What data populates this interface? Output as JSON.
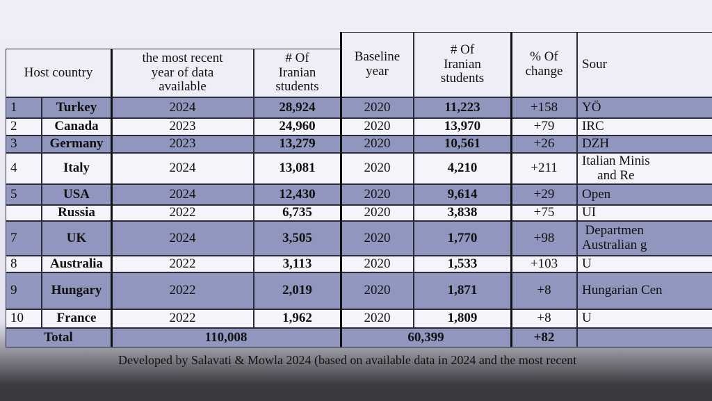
{
  "table": {
    "header": [
      "Host country",
      "the most recent\nyear of data\navailable",
      "# Of\nIranian\nstudents",
      "Baseline\nyear",
      "# Of\nIranian\nstudents",
      "% Of\nchange",
      "Sour"
    ],
    "rows": [
      [
        "1",
        "Turkey",
        "2024",
        "28,924",
        "2020",
        "11,223",
        "+158",
        "YÖ"
      ],
      [
        "2",
        "Canada",
        "2023",
        "24,960",
        "2020",
        "13,970",
        "+79",
        "IRC"
      ],
      [
        "3",
        "Germany",
        "2023",
        "13,279",
        "2020",
        "10,561",
        "+26",
        "DZH"
      ],
      [
        "4",
        "Italy",
        "2024",
        "13,081",
        "2020",
        "4,210",
        "+211",
        "Italian Minis\nand Re"
      ],
      [
        "5",
        "USA",
        "2024",
        "12,430",
        "2020",
        "9,614",
        "+29",
        "Open"
      ],
      [
        null,
        "Russia",
        "2022",
        "6,735",
        "2020",
        "3,838",
        "+75",
        "UI"
      ],
      [
        "7",
        "UK",
        "2024",
        "3,505",
        "2020",
        "1,770",
        "+98",
        "Departmen\nAustralian g"
      ],
      [
        "8",
        "Australia",
        "2022",
        "3,113",
        "2020",
        "1,533",
        "+103",
        "U"
      ],
      [
        "9",
        "Hungary",
        "2022",
        "2,019",
        "2020",
        "1,871",
        "+8",
        "Hungarian Cen"
      ],
      [
        "10",
        "France",
        "2022",
        "1,962",
        "2020",
        "1,809",
        "+8",
        "U"
      ]
    ],
    "total": [
      "Total",
      "110,008",
      "60,399",
      "+82"
    ]
  },
  "footer": "Developed by Salavati & Mowla 2024 (based on available data in 2024 and the most recent"
}
